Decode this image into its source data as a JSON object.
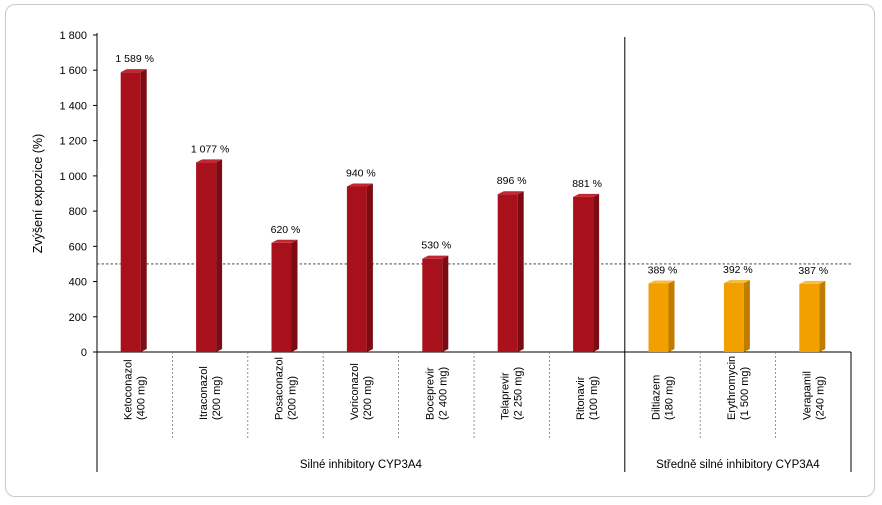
{
  "chart_data": {
    "type": "bar",
    "ylabel": "Zvýšení expozice (%)",
    "ylim": [
      0,
      1800
    ],
    "yticks": [
      0,
      200,
      400,
      600,
      800,
      1000,
      1200,
      1400,
      1600,
      1800
    ],
    "ytick_labels": [
      "0",
      "200",
      "400",
      "600",
      "800",
      "1 000",
      "1 200",
      "1 400",
      "1 600",
      "1 800"
    ],
    "reference_line": 500,
    "categories": [
      {
        "name": "Ketoconazol",
        "dose": "(400 mg)",
        "value": 1589,
        "label": "1 589 %",
        "group": 0
      },
      {
        "name": "Itraconazol",
        "dose": "(200 mg)",
        "value": 1077,
        "label": "1 077 %",
        "group": 0
      },
      {
        "name": "Posaconazol",
        "dose": "(200 mg)",
        "value": 620,
        "label": "620 %",
        "group": 0
      },
      {
        "name": "Voriconazol",
        "dose": "(200 mg)",
        "value": 940,
        "label": "940 %",
        "group": 0
      },
      {
        "name": "Boceprevir",
        "dose": "(2 400 mg)",
        "value": 530,
        "label": "530 %",
        "group": 0
      },
      {
        "name": "Telaprevir",
        "dose": "(2 250 mg)",
        "value": 896,
        "label": "896 %",
        "group": 0
      },
      {
        "name": "Ritonavir",
        "dose": "(100 mg)",
        "value": 881,
        "label": "881 %",
        "group": 0
      },
      {
        "name": "Diltiazem",
        "dose": "(180 mg)",
        "value": 389,
        "label": "389 %",
        "group": 1
      },
      {
        "name": "Erythromycin",
        "dose": "(1 500 mg)",
        "value": 392,
        "label": "392 %",
        "group": 1
      },
      {
        "name": "Verapamil",
        "dose": "(240 mg)",
        "value": 387,
        "label": "387 %",
        "group": 1
      }
    ],
    "groups": [
      {
        "label": "Silné inhibitory CYP3A4",
        "color": "#a8101c",
        "top_color": "#c42630",
        "side_color": "#7c0b14"
      },
      {
        "label": "Středně silné inhibitory CYP3A4",
        "color": "#f2a000",
        "top_color": "#f8bd3e",
        "side_color": "#c07c00"
      }
    ],
    "grid": false
  }
}
